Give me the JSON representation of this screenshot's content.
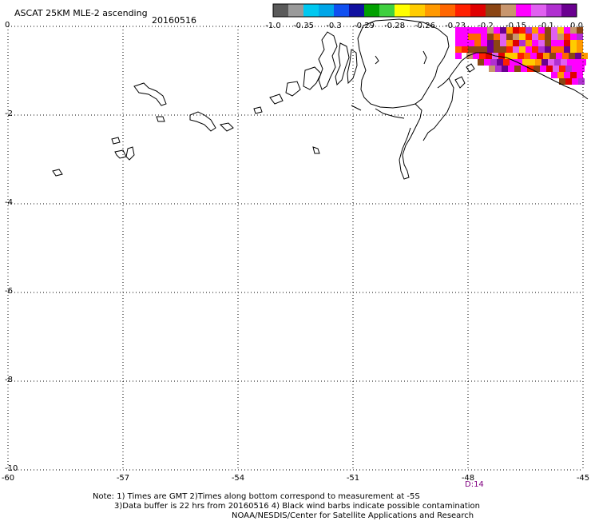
{
  "title": "ASCAT 25KM MLE-2 ascending",
  "date": "20160516",
  "colorbar": {
    "colors": [
      "#5a5a5a",
      "#9a9a9a",
      "#00c8f0",
      "#00a6e8",
      "#1050f0",
      "#1010a0",
      "#00a000",
      "#40d040",
      "#ffff00",
      "#ffcc00",
      "#ff9900",
      "#ff6600",
      "#ff2000",
      "#e00000",
      "#8b4513",
      "#c8966e",
      "#ff00ff",
      "#e060f0",
      "#b030d0",
      "#6a0090"
    ],
    "labels": [
      "-1.0",
      "-0.35",
      "-0.3",
      "-0.29",
      "-0.28",
      "-0.26",
      "-0.23",
      "-0.2",
      "-0.15",
      "-0.1",
      "0.0"
    ]
  },
  "axes": {
    "y_labels": [
      "0",
      "-2",
      "-4",
      "-6",
      "-8",
      "-10"
    ],
    "x_labels": [
      "-60",
      "-57",
      "-54",
      "-51",
      "-48",
      "-45"
    ],
    "lat_range": [
      -10,
      0
    ],
    "lon_range": [
      -60,
      -45
    ]
  },
  "swath_time": "D:14",
  "notes": [
    "Note: 1) Times are GMT 2)Times along bottom correspond to measurement at -5S",
    "3)Data buffer is 22 hrs from 20160516 4) Black wind barbs indicate possible contamination",
    "NOAA/NESDIS/Center for Satellite Applications and Research"
  ],
  "colors": {
    "grid": "#000000",
    "swath_time": "#800080"
  }
}
